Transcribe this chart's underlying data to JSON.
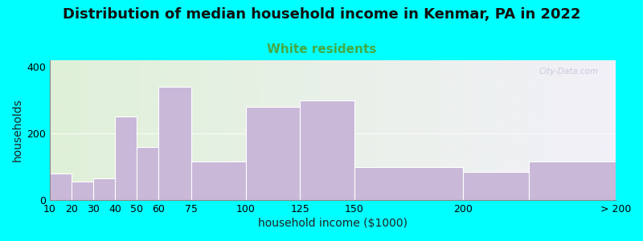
{
  "title": "Distribution of median household income in Kenmar, PA in 2022",
  "subtitle": "White residents",
  "xlabel": "household income ($1000)",
  "ylabel": "households",
  "bar_color": "#c9b8d8",
  "bar_edgecolor": "#ffffff",
  "background_color": "#00ffff",
  "plot_bg_left_color": "#dff0d8",
  "plot_bg_right_color": "#f2f0f8",
  "bin_edges": [
    10,
    20,
    30,
    40,
    50,
    60,
    75,
    100,
    125,
    150,
    200,
    230,
    270
  ],
  "values": [
    80,
    55,
    65,
    250,
    160,
    340,
    115,
    280,
    300,
    100,
    85,
    115
  ],
  "xtick_positions": [
    10,
    20,
    30,
    40,
    50,
    60,
    75,
    100,
    125,
    150,
    200,
    270
  ],
  "xtick_labels": [
    "10",
    "20",
    "30",
    "40",
    "50",
    "60",
    "75",
    "100",
    "125",
    "150",
    "200",
    "> 200"
  ],
  "ylim": [
    0,
    420
  ],
  "yticks": [
    0,
    200,
    400
  ],
  "title_fontsize": 13,
  "subtitle_fontsize": 11,
  "subtitle_color": "#44aa44",
  "axis_label_fontsize": 10,
  "tick_fontsize": 9,
  "watermark": "City-Data.com"
}
